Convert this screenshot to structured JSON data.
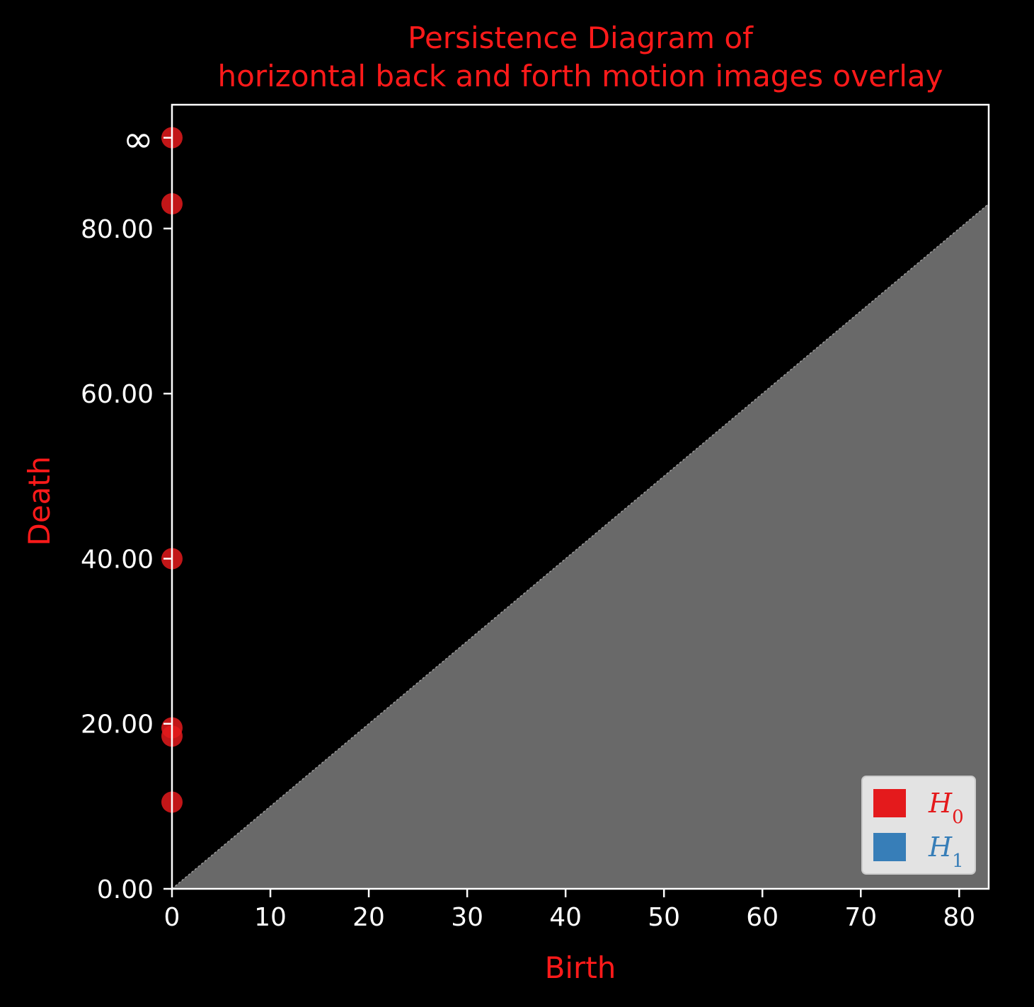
{
  "chart_data": {
    "type": "scatter",
    "title_line1": "Persistence Diagram of",
    "title_line2": "horizontal back and forth motion images overlay",
    "xlabel": "Birth",
    "ylabel": "Death",
    "xlim": [
      0,
      83
    ],
    "ylim": [
      0,
      95
    ],
    "x_ticks": [
      0,
      10,
      20,
      30,
      40,
      50,
      60,
      70,
      80
    ],
    "x_tick_labels": [
      "0",
      "10",
      "20",
      "30",
      "40",
      "50",
      "60",
      "70",
      "80"
    ],
    "y_ticks": [
      0,
      20,
      40,
      60,
      80
    ],
    "y_tick_labels": [
      "0.00",
      "20.00",
      "40.00",
      "60.00",
      "80.00"
    ],
    "infinity_value": 91,
    "infinity_label": "∞",
    "diagonal_fill_color": "#696969",
    "series": [
      {
        "name": "H0",
        "label_main": "H",
        "label_sub": "0",
        "color": "#e41a1c",
        "points": [
          {
            "x": 0,
            "y": 91
          },
          {
            "x": 0,
            "y": 83
          },
          {
            "x": 0,
            "y": 40
          },
          {
            "x": 0,
            "y": 19.5
          },
          {
            "x": 0,
            "y": 18.5
          },
          {
            "x": 0,
            "y": 10.5
          }
        ]
      },
      {
        "name": "H1",
        "label_main": "H",
        "label_sub": "1",
        "color": "#377eb8",
        "points": []
      }
    ],
    "legend_position": "lower-right"
  }
}
